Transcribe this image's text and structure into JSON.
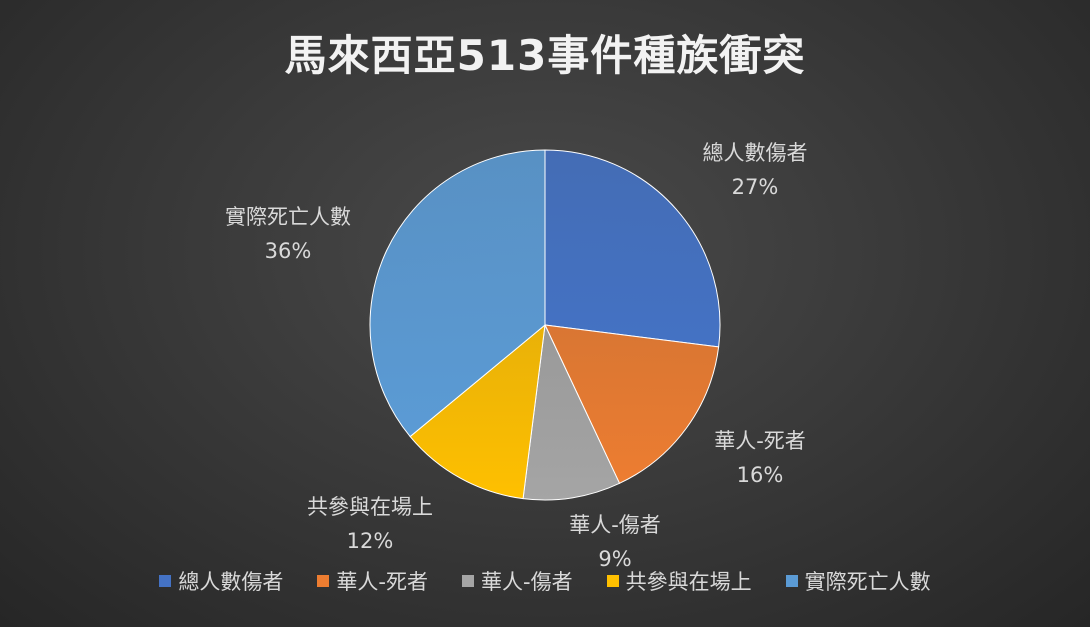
{
  "chart_data": {
    "type": "pie",
    "title": "馬來西亞513事件種族衝突",
    "slices": [
      {
        "name": "總人數傷者",
        "value": 27,
        "label": "27%",
        "color": "#4472C4"
      },
      {
        "name": "華人-死者",
        "value": 16,
        "label": "16%",
        "color": "#ED7D31"
      },
      {
        "name": "華人-傷者",
        "value": 9,
        "label": "9%",
        "color": "#A5A5A5"
      },
      {
        "name": "共參與在場上",
        "value": 12,
        "label": "12%",
        "color": "#FFC000"
      },
      {
        "name": "實際死亡人數",
        "value": 36,
        "label": "36%",
        "color": "#5B9BD5"
      }
    ],
    "legend_position": "bottom"
  }
}
